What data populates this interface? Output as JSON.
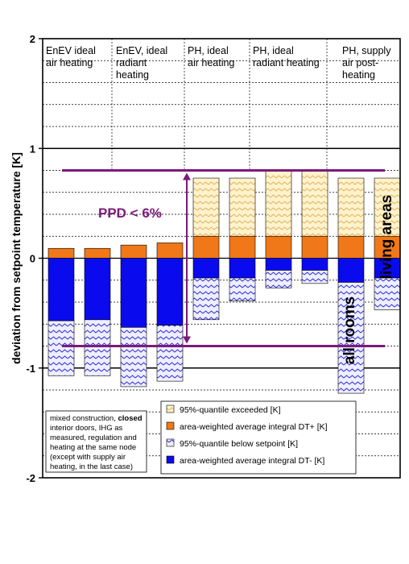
{
  "chart_data": {
    "type": "bar",
    "ylabel": "deviation from setpoint temperature [K]",
    "ylim": [
      -2,
      2
    ],
    "yticks": [
      "2",
      "1",
      "0",
      "-1",
      "-2"
    ],
    "scenario_labels": [
      [
        "EnEV ideal",
        "air heating"
      ],
      [
        "EnEV, ideal",
        "radiant",
        "heating"
      ],
      [
        "PH, ideal",
        "air heating"
      ],
      [
        "PH, ideal",
        "radiant heating"
      ],
      [
        "PH, supply",
        "air post-",
        "heating"
      ]
    ],
    "bars": [
      {
        "dt_plus": 0.09,
        "q95_exceeded": 0.09,
        "dt_minus": -0.57,
        "q95_below": -1.07
      },
      {
        "dt_plus": 0.09,
        "q95_exceeded": 0.09,
        "dt_minus": -0.56,
        "q95_below": -1.07
      },
      {
        "dt_plus": 0.12,
        "q95_exceeded": 0.12,
        "dt_minus": -0.63,
        "q95_below": -1.17
      },
      {
        "dt_plus": 0.14,
        "q95_exceeded": 0.14,
        "dt_minus": -0.61,
        "q95_below": -1.12
      },
      {
        "dt_plus": 0.2,
        "q95_exceeded": 0.73,
        "dt_minus": -0.18,
        "q95_below": -0.56
      },
      {
        "dt_plus": 0.2,
        "q95_exceeded": 0.73,
        "dt_minus": -0.18,
        "q95_below": -0.39
      },
      {
        "dt_plus": 0.2,
        "q95_exceeded": 0.8,
        "dt_minus": -0.11,
        "q95_below": -0.27
      },
      {
        "dt_plus": 0.2,
        "q95_exceeded": 0.8,
        "dt_minus": -0.11,
        "q95_below": -0.23
      },
      {
        "dt_plus": 0.2,
        "q95_exceeded": 0.73,
        "dt_minus": -0.22,
        "q95_below": -1.23
      },
      {
        "dt_plus": 0.2,
        "q95_exceeded": 0.73,
        "dt_minus": -0.18,
        "q95_below": -0.47
      }
    ],
    "ppd_limits": [
      0.8,
      -0.8
    ],
    "legend": [
      {
        "key": "q95_exceeded",
        "label": "95%-quantile exceeded [K]"
      },
      {
        "key": "dt_plus",
        "label": "area-weighted average integral DT+ [K]"
      },
      {
        "key": "q95_below",
        "label": "95%-quantile below setpoint [K]"
      },
      {
        "key": "dt_minus",
        "label": "area-weighted average integral DT- [K]"
      }
    ],
    "colors": {
      "dt_plus": "#f07818",
      "dt_minus": "#0a0aee",
      "q95_exceeded_bg": "#fff3cc",
      "q95_exceeded_line": "#e0b060",
      "q95_below_bg": "#eeeeff",
      "q95_below_line": "#2a2ad6",
      "ppd": "#7b1a7b"
    },
    "annotations": {
      "ppd": "PPD < 6%",
      "all_rooms": "all rooms",
      "living_areas": "living areas"
    },
    "note_lines": [
      [
        {
          "t": "mixed construction, "
        },
        {
          "t": "closed",
          "b": true
        }
      ],
      [
        {
          "t": "interior doors, IHG as"
        }
      ],
      [
        {
          "t": "measured, regulation and"
        }
      ],
      [
        {
          "t": "heating at the same node"
        }
      ],
      [
        {
          "t": "(except with supply air"
        }
      ],
      [
        {
          "t": "heating, in the last case)"
        }
      ]
    ]
  }
}
